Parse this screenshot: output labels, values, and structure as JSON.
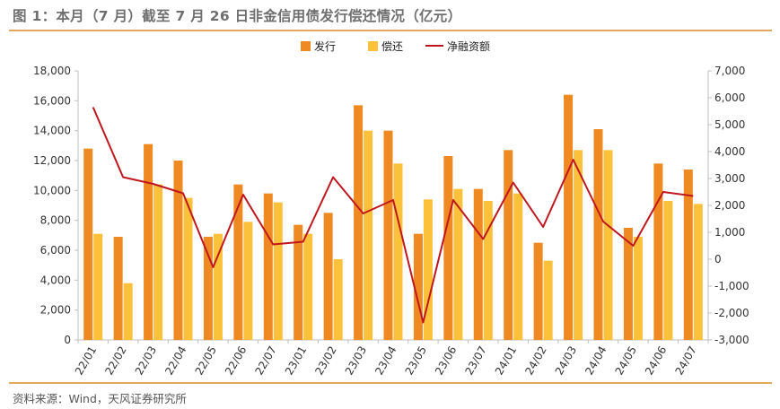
{
  "title": "图 1：本月（7 月）截至 7 月 26 日非金信用债发行偿还情况（亿元）",
  "source": "资料来源：Wind，天风证券研究所",
  "colors": {
    "issue": "#ef8a22",
    "repay": "#fcc13a",
    "net": "#c0161e",
    "accent_line": "#e3a85f",
    "axis": "#bfbfbf"
  },
  "chart_data": {
    "type": "bar",
    "categories": [
      "22/01",
      "22/02",
      "22/03",
      "22/04",
      "22/05",
      "22/06",
      "22/07",
      "23/01",
      "23/02",
      "23/03",
      "23/04",
      "23/05",
      "23/06",
      "23/07",
      "24/01",
      "24/02",
      "24/03",
      "24/04",
      "24/05",
      "24/06",
      "24/07"
    ],
    "series": [
      {
        "name": "发行",
        "type": "bar",
        "axis": "left",
        "color": "#ef8a22",
        "values": [
          12800,
          6900,
          13100,
          12000,
          6900,
          10400,
          9800,
          7700,
          8500,
          15700,
          14000,
          7100,
          12300,
          10100,
          12700,
          6500,
          16400,
          14100,
          7500,
          11800,
          11400
        ]
      },
      {
        "name": "偿还",
        "type": "bar",
        "axis": "left",
        "color": "#fcc13a",
        "values": [
          7100,
          3800,
          10400,
          9500,
          7100,
          7900,
          9200,
          7100,
          5400,
          14000,
          11800,
          9400,
          10100,
          9300,
          9800,
          5300,
          12700,
          12700,
          6900,
          9300,
          9100
        ]
      },
      {
        "name": "净融资额",
        "type": "line",
        "axis": "right",
        "color": "#c0161e",
        "values": [
          5650,
          3050,
          2800,
          2450,
          -300,
          2400,
          550,
          650,
          3050,
          1700,
          2200,
          -2350,
          2200,
          750,
          2850,
          1200,
          3700,
          1400,
          500,
          2500,
          2350
        ]
      }
    ],
    "y_left": {
      "min": 0,
      "max": 18000,
      "step": 2000,
      "tick_labels": [
        "0",
        "2,000",
        "4,000",
        "6,000",
        "8,000",
        "10,000",
        "12,000",
        "14,000",
        "16,000",
        "18,000"
      ]
    },
    "y_right": {
      "min": -3000,
      "max": 7000,
      "step": 1000,
      "tick_labels": [
        "-3,000",
        "-2,000",
        "-1,000",
        "0",
        "1,000",
        "2,000",
        "3,000",
        "4,000",
        "5,000",
        "6,000",
        "7,000"
      ]
    },
    "legend_position": "top-center",
    "grid": false
  }
}
